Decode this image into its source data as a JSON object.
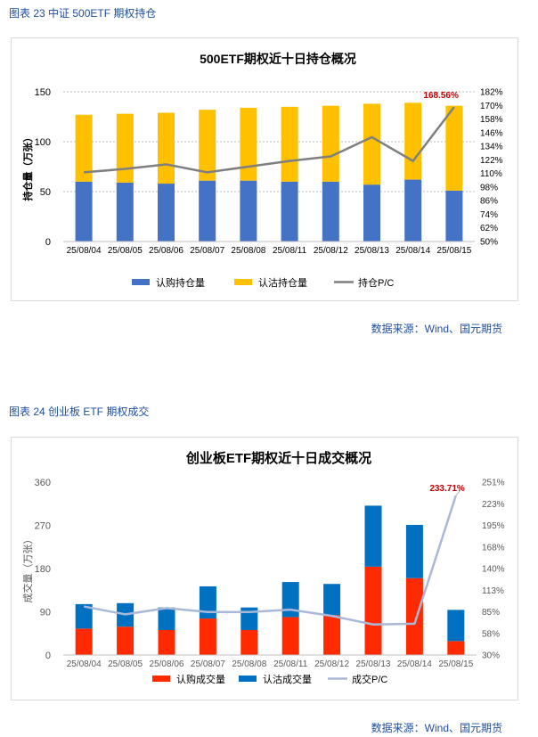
{
  "figures": [
    {
      "caption": "图表 23  中证 500ETF 期权持仓",
      "source": "数据来源：Wind、国元期货"
    },
    {
      "caption": "图表 24  创业板 ETF 期权成交",
      "source": "数据来源：Wind、国元期货"
    }
  ],
  "chart_data": [
    {
      "type": "bar",
      "stacked": true,
      "title": "500ETF期权近十日持仓概况",
      "ylabel": "持仓量（万张）",
      "ylim": [
        0,
        150
      ],
      "yticks": [
        "0",
        "50",
        "100",
        "150"
      ],
      "y2lim": [
        50,
        182
      ],
      "y2ticks": [
        "50%",
        "62%",
        "74%",
        "86%",
        "98%",
        "110%",
        "122%",
        "134%",
        "146%",
        "158%",
        "170%",
        "182%"
      ],
      "categories": [
        "25/08/04",
        "25/08/05",
        "25/08/06",
        "25/08/07",
        "25/08/08",
        "25/08/11",
        "25/08/12",
        "25/08/13",
        "25/08/14",
        "25/08/15"
      ],
      "series": [
        {
          "name": "认购持仓量",
          "kind": "bar",
          "color": "#4472c4",
          "values": [
            60,
            59,
            58,
            61,
            61,
            60,
            60,
            57,
            62,
            51
          ]
        },
        {
          "name": "认沽持仓量",
          "kind": "bar",
          "color": "#ffc000",
          "values": [
            67,
            69,
            71,
            71,
            73,
            75,
            76,
            81,
            77,
            85
          ]
        },
        {
          "name": "持仓P/C",
          "kind": "line",
          "axis": "right",
          "color": "#7f7f7f",
          "values": [
            111,
            114,
            118,
            111,
            116,
            121,
            125,
            142,
            121,
            168.56
          ]
        }
      ],
      "annotation": {
        "text": "168.56%",
        "color": "#c00000"
      },
      "grid": true,
      "legend": "bottom"
    },
    {
      "type": "bar",
      "stacked": true,
      "title": "创业板ETF期权近十日成交概况",
      "ylabel": "成交量（万张）",
      "ylim": [
        0,
        360
      ],
      "yticks": [
        "0",
        "90",
        "180",
        "270",
        "360"
      ],
      "y2lim": [
        30,
        251
      ],
      "y2ticks": [
        "30%",
        "58%",
        "85%",
        "113%",
        "140%",
        "168%",
        "195%",
        "223%",
        "251%"
      ],
      "categories": [
        "25/08/04",
        "25/08/05",
        "25/08/06",
        "25/08/07",
        "25/08/08",
        "25/08/11",
        "25/08/12",
        "25/08/13",
        "25/08/14",
        "25/08/15"
      ],
      "series": [
        {
          "name": "认购成交量",
          "kind": "bar",
          "color": "#ff2a00",
          "values": [
            55,
            59,
            52,
            76,
            52,
            79,
            83,
            184,
            160,
            29
          ]
        },
        {
          "name": "认沽成交量",
          "kind": "bar",
          "color": "#0070c0",
          "values": [
            51,
            49,
            47,
            67,
            47,
            73,
            65,
            127,
            111,
            65
          ]
        },
        {
          "name": "成交P/C",
          "kind": "line",
          "axis": "right",
          "color": "#a9b8d9",
          "values": [
            92,
            82,
            90,
            85,
            85,
            88,
            80,
            69,
            70,
            233.71
          ]
        }
      ],
      "annotation": {
        "text": "233.71%",
        "color": "#c00000"
      },
      "grid": false,
      "legend": "bottom"
    }
  ]
}
